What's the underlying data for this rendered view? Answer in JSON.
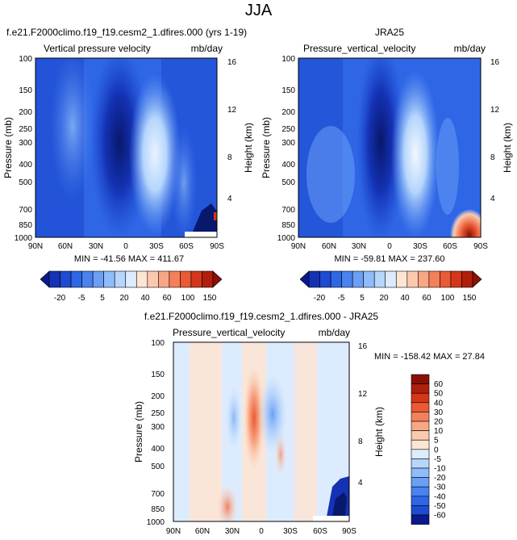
{
  "page_title": "JJA",
  "chart_data": [
    {
      "type": "heatmap",
      "id": "p1",
      "title": "f.e21.F2000climo.f19_f19.cesm2_1.dfires.000 (yrs 1-19)",
      "left_label": "Vertical pressure velocity",
      "right_label": "mb/day",
      "ylabel": "Pressure (mb)",
      "ylabel_right": "Height (km)",
      "x_ticks": [
        "90N",
        "60N",
        "30N",
        "0",
        "30S",
        "60S",
        "90S"
      ],
      "y_ticks": [
        "100",
        "150",
        "200",
        "250",
        "300",
        "400",
        "500",
        "700",
        "850",
        "1000"
      ],
      "height_ticks": [
        "16",
        "12",
        "8",
        "4"
      ],
      "xlim": [
        "90N",
        "90S"
      ],
      "ylim": [
        1000,
        100
      ],
      "stats": "MIN = -41.56   MAX = 411.67",
      "features": [
        {
          "lat": -10,
          "p": 450,
          "value": -20
        },
        {
          "lat": 20,
          "p": 500,
          "value": 5
        },
        {
          "lat": 75,
          "p": 900,
          "value": 100
        }
      ]
    },
    {
      "type": "heatmap",
      "id": "p2",
      "title": "JRA25",
      "left_label": "Pressure_vertical_velocity",
      "right_label": "mb/day",
      "ylabel": "Pressure (mb)",
      "ylabel_right": "Height (km)",
      "x_ticks": [
        "90N",
        "60N",
        "30N",
        "0",
        "30S",
        "60S",
        "90S"
      ],
      "y_ticks": [
        "100",
        "150",
        "200",
        "250",
        "300",
        "400",
        "500",
        "700",
        "850",
        "1000"
      ],
      "height_ticks": [
        "16",
        "12",
        "8",
        "4"
      ],
      "xlim": [
        "90N",
        "90S"
      ],
      "ylim": [
        1000,
        100
      ],
      "stats": "MIN = -59.81   MAX = 237.60",
      "features": [
        {
          "lat": -12,
          "p": 400,
          "value": -20
        },
        {
          "lat": 18,
          "p": 450,
          "value": 5
        },
        {
          "lat": 78,
          "p": 880,
          "value": 150
        }
      ]
    },
    {
      "type": "heatmap",
      "id": "p3",
      "title": "f.e21.F2000climo.f19_f19.cesm2_1.dfires.000 - JRA25",
      "left_label": "Pressure_vertical_velocity",
      "right_label": "mb/day",
      "ylabel": "Pressure (mb)",
      "ylabel_right": "Height (km)",
      "x_ticks": [
        "90N",
        "60N",
        "30N",
        "0",
        "30S",
        "60S",
        "90S"
      ],
      "y_ticks": [
        "100",
        "150",
        "200",
        "250",
        "300",
        "400",
        "500",
        "700",
        "850",
        "1000"
      ],
      "height_ticks": [
        "16",
        "12",
        "8",
        "4"
      ],
      "xlim": [
        "90N",
        "90S"
      ],
      "ylim": [
        1000,
        100
      ],
      "stats": "MIN = -158.42   MAX = 27.84",
      "features": [
        {
          "lat": -5,
          "p": 300,
          "value": 30
        },
        {
          "lat": -30,
          "p": 900,
          "value": 20
        },
        {
          "lat": 78,
          "p": 850,
          "value": -60
        }
      ]
    }
  ],
  "colorbar_top": {
    "labels": [
      "-20",
      "-5",
      "5",
      "20",
      "40",
      "60",
      "100",
      "150"
    ],
    "colors": [
      "#0a1a8c",
      "#1432b4",
      "#1e4bd2",
      "#2e66e6",
      "#4a82f0",
      "#6a9ff5",
      "#8fbcfa",
      "#b6d6fc",
      "#dcecfe",
      "#fde5d5",
      "#fbc9ad",
      "#f8a785",
      "#f3805b",
      "#ea5a34",
      "#d4361a",
      "#b01f0c",
      "#8a1006"
    ]
  },
  "colorbar_diff": {
    "labels": [
      "60",
      "50",
      "40",
      "30",
      "20",
      "10",
      "5",
      "0",
      "-5",
      "-10",
      "-20",
      "-30",
      "-40",
      "-50",
      "-60"
    ],
    "colors": [
      "#8a1006",
      "#b01f0c",
      "#d4361a",
      "#ea5a34",
      "#f3805b",
      "#f8a785",
      "#fbc9ad",
      "#fde5d5",
      "#dcecfe",
      "#b6d6fc",
      "#8fbcfa",
      "#6a9ff5",
      "#4a82f0",
      "#2e66e6",
      "#1e4bd2",
      "#0a1a8c"
    ]
  }
}
